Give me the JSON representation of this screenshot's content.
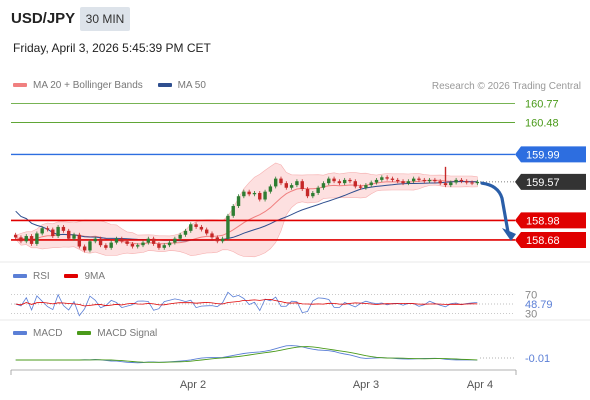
{
  "header": {
    "symbol": "USD/JPY",
    "interval": "30 MIN",
    "datetime": "Friday, April 3, 2026 5:45:39 PM CET"
  },
  "legend_main": [
    {
      "label": "MA 20 + Bollinger Bands",
      "color": "#f08080"
    },
    {
      "label": "MA 50",
      "color": "#2f4f8f"
    }
  ],
  "credit": "Research © 2026 Trading Central",
  "legend_rsi": [
    {
      "label": "RSI",
      "color": "#5b7fd6"
    },
    {
      "label": "9MA",
      "color": "#e00000"
    }
  ],
  "legend_macd": [
    {
      "label": "MACD",
      "color": "#5b7fd6"
    },
    {
      "label": "MACD Signal",
      "color": "#4a9a1a"
    }
  ],
  "colors": {
    "resistance_green": "#4a9a1a",
    "pivot_blue": "#2d6ee0",
    "support_red": "#e00000",
    "last_price_tag": "#333333",
    "band_fill": "#fde0e0",
    "forecast_arrow": "#2a5ea8"
  },
  "chart_data": {
    "type": "candlestick",
    "ylim": [
      158.45,
      160.9
    ],
    "x_labels": [
      "Apr 2",
      "Apr 3",
      "Apr 4"
    ],
    "levels": [
      {
        "value": 160.77,
        "label": "160.77",
        "kind": "resistance"
      },
      {
        "value": 160.48,
        "label": "160.48",
        "kind": "resistance"
      },
      {
        "value": 159.99,
        "label": "159.99",
        "kind": "pivot"
      },
      {
        "value": 158.98,
        "label": "158.98",
        "kind": "support"
      },
      {
        "value": 158.68,
        "label": "158.68",
        "kind": "support"
      }
    ],
    "last_price": {
      "value": 159.57,
      "label": "159.57"
    },
    "forecast": {
      "from": 159.55,
      "to": 158.68
    },
    "candles_close": [
      158.72,
      158.66,
      158.74,
      158.62,
      158.78,
      158.86,
      158.84,
      158.74,
      158.88,
      158.82,
      158.7,
      158.76,
      158.58,
      158.52,
      158.66,
      158.7,
      158.6,
      158.56,
      158.64,
      158.7,
      158.66,
      158.62,
      158.58,
      158.6,
      158.64,
      158.7,
      158.62,
      158.56,
      158.6,
      158.64,
      158.7,
      158.76,
      158.82,
      158.92,
      158.88,
      158.84,
      158.78,
      158.72,
      158.66,
      158.7,
      159.05,
      159.2,
      159.35,
      159.42,
      159.38,
      159.4,
      159.3,
      159.42,
      159.5,
      159.62,
      159.55,
      159.48,
      159.52,
      159.58,
      159.46,
      159.35,
      159.4,
      159.48,
      159.55,
      159.62,
      159.58,
      159.55,
      159.6,
      159.58,
      159.5,
      159.48,
      159.52,
      159.56,
      159.6,
      159.64,
      159.62,
      159.6,
      159.58,
      159.55,
      159.58,
      159.62,
      159.6,
      159.58,
      159.6,
      159.58,
      159.55,
      159.52,
      159.56,
      159.6,
      159.58,
      159.56,
      159.55,
      159.57
    ],
    "rsi": {
      "levels": [
        70,
        50,
        30
      ],
      "last_label": "48.79",
      "labels": [
        "70",
        "30"
      ],
      "ylim": [
        20,
        80
      ]
    },
    "macd": {
      "last_label": "-0.01"
    }
  }
}
